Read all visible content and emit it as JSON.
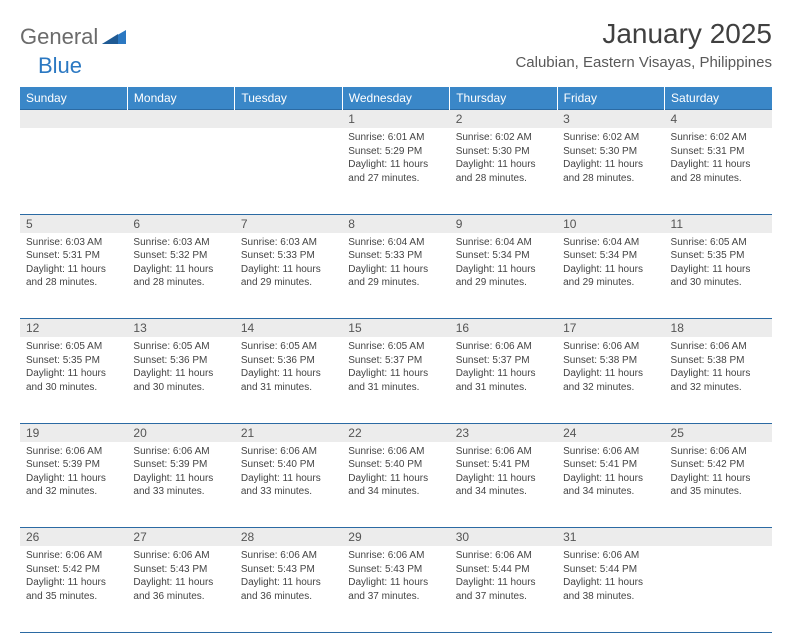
{
  "brand": {
    "name_gray": "General",
    "name_blue": "Blue"
  },
  "title": "January 2025",
  "location": "Calubian, Eastern Visayas, Philippines",
  "colors": {
    "header_bg": "#3a87c8",
    "header_text": "#ffffff",
    "daynum_bg": "#ececec",
    "rule": "#2b6aa3",
    "brand_gray": "#6b6b6b",
    "brand_blue": "#2b78c2"
  },
  "typography": {
    "title_fontsize": 28,
    "location_fontsize": 15,
    "weekday_fontsize": 12,
    "daynum_fontsize": 12,
    "cell_fontsize": 10
  },
  "weekdays": [
    "Sunday",
    "Monday",
    "Tuesday",
    "Wednesday",
    "Thursday",
    "Friday",
    "Saturday"
  ],
  "weeks": [
    [
      null,
      null,
      null,
      {
        "n": "1",
        "sunrise": "6:01 AM",
        "sunset": "5:29 PM",
        "daylight": "11 hours and 27 minutes."
      },
      {
        "n": "2",
        "sunrise": "6:02 AM",
        "sunset": "5:30 PM",
        "daylight": "11 hours and 28 minutes."
      },
      {
        "n": "3",
        "sunrise": "6:02 AM",
        "sunset": "5:30 PM",
        "daylight": "11 hours and 28 minutes."
      },
      {
        "n": "4",
        "sunrise": "6:02 AM",
        "sunset": "5:31 PM",
        "daylight": "11 hours and 28 minutes."
      }
    ],
    [
      {
        "n": "5",
        "sunrise": "6:03 AM",
        "sunset": "5:31 PM",
        "daylight": "11 hours and 28 minutes."
      },
      {
        "n": "6",
        "sunrise": "6:03 AM",
        "sunset": "5:32 PM",
        "daylight": "11 hours and 28 minutes."
      },
      {
        "n": "7",
        "sunrise": "6:03 AM",
        "sunset": "5:33 PM",
        "daylight": "11 hours and 29 minutes."
      },
      {
        "n": "8",
        "sunrise": "6:04 AM",
        "sunset": "5:33 PM",
        "daylight": "11 hours and 29 minutes."
      },
      {
        "n": "9",
        "sunrise": "6:04 AM",
        "sunset": "5:34 PM",
        "daylight": "11 hours and 29 minutes."
      },
      {
        "n": "10",
        "sunrise": "6:04 AM",
        "sunset": "5:34 PM",
        "daylight": "11 hours and 29 minutes."
      },
      {
        "n": "11",
        "sunrise": "6:05 AM",
        "sunset": "5:35 PM",
        "daylight": "11 hours and 30 minutes."
      }
    ],
    [
      {
        "n": "12",
        "sunrise": "6:05 AM",
        "sunset": "5:35 PM",
        "daylight": "11 hours and 30 minutes."
      },
      {
        "n": "13",
        "sunrise": "6:05 AM",
        "sunset": "5:36 PM",
        "daylight": "11 hours and 30 minutes."
      },
      {
        "n": "14",
        "sunrise": "6:05 AM",
        "sunset": "5:36 PM",
        "daylight": "11 hours and 31 minutes."
      },
      {
        "n": "15",
        "sunrise": "6:05 AM",
        "sunset": "5:37 PM",
        "daylight": "11 hours and 31 minutes."
      },
      {
        "n": "16",
        "sunrise": "6:06 AM",
        "sunset": "5:37 PM",
        "daylight": "11 hours and 31 minutes."
      },
      {
        "n": "17",
        "sunrise": "6:06 AM",
        "sunset": "5:38 PM",
        "daylight": "11 hours and 32 minutes."
      },
      {
        "n": "18",
        "sunrise": "6:06 AM",
        "sunset": "5:38 PM",
        "daylight": "11 hours and 32 minutes."
      }
    ],
    [
      {
        "n": "19",
        "sunrise": "6:06 AM",
        "sunset": "5:39 PM",
        "daylight": "11 hours and 32 minutes."
      },
      {
        "n": "20",
        "sunrise": "6:06 AM",
        "sunset": "5:39 PM",
        "daylight": "11 hours and 33 minutes."
      },
      {
        "n": "21",
        "sunrise": "6:06 AM",
        "sunset": "5:40 PM",
        "daylight": "11 hours and 33 minutes."
      },
      {
        "n": "22",
        "sunrise": "6:06 AM",
        "sunset": "5:40 PM",
        "daylight": "11 hours and 34 minutes."
      },
      {
        "n": "23",
        "sunrise": "6:06 AM",
        "sunset": "5:41 PM",
        "daylight": "11 hours and 34 minutes."
      },
      {
        "n": "24",
        "sunrise": "6:06 AM",
        "sunset": "5:41 PM",
        "daylight": "11 hours and 34 minutes."
      },
      {
        "n": "25",
        "sunrise": "6:06 AM",
        "sunset": "5:42 PM",
        "daylight": "11 hours and 35 minutes."
      }
    ],
    [
      {
        "n": "26",
        "sunrise": "6:06 AM",
        "sunset": "5:42 PM",
        "daylight": "11 hours and 35 minutes."
      },
      {
        "n": "27",
        "sunrise": "6:06 AM",
        "sunset": "5:43 PM",
        "daylight": "11 hours and 36 minutes."
      },
      {
        "n": "28",
        "sunrise": "6:06 AM",
        "sunset": "5:43 PM",
        "daylight": "11 hours and 36 minutes."
      },
      {
        "n": "29",
        "sunrise": "6:06 AM",
        "sunset": "5:43 PM",
        "daylight": "11 hours and 37 minutes."
      },
      {
        "n": "30",
        "sunrise": "6:06 AM",
        "sunset": "5:44 PM",
        "daylight": "11 hours and 37 minutes."
      },
      {
        "n": "31",
        "sunrise": "6:06 AM",
        "sunset": "5:44 PM",
        "daylight": "11 hours and 38 minutes."
      },
      null
    ]
  ],
  "labels": {
    "sunrise_prefix": "Sunrise: ",
    "sunset_prefix": "Sunset: ",
    "daylight_prefix": "Daylight: "
  }
}
